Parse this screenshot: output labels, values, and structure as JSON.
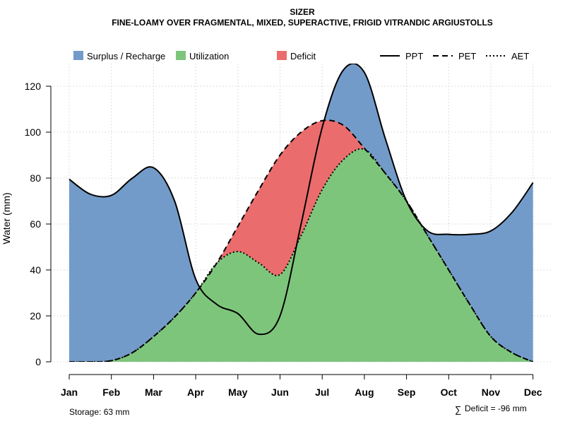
{
  "chart_data": {
    "type": "area",
    "title": "SIZER",
    "subtitle": "FINE-LOAMY OVER FRAGMENTAL, MIXED, SUPERACTIVE, FRIGID VITRANDIC ARGIUSTOLLS",
    "xlabel": "",
    "ylabel": "Water (mm)",
    "ylim": [
      0,
      130
    ],
    "yticks": [
      "0",
      "20",
      "40",
      "60",
      "80",
      "100",
      "120"
    ],
    "categories": [
      "Jan",
      "Feb",
      "Mar",
      "Apr",
      "May",
      "Jun",
      "Jul",
      "Aug",
      "Sep",
      "Oct",
      "Nov",
      "Dec"
    ],
    "grid": true,
    "legend_position": "top",
    "legend": {
      "fills": [
        {
          "label": "Surplus / Recharge",
          "color": "#739BC9"
        },
        {
          "label": "Utilization",
          "color": "#7EC57C"
        },
        {
          "label": "Deficit",
          "color": "#EB6C6C"
        }
      ],
      "lines": [
        {
          "label": "PPT",
          "style": "solid"
        },
        {
          "label": "PET",
          "style": "dashed"
        },
        {
          "label": "AET",
          "style": "dotted"
        }
      ]
    },
    "series": [
      {
        "name": "PPT",
        "x": [
          1,
          1.5,
          2,
          2.5,
          3,
          3.5,
          4,
          4.5,
          5,
          5.5,
          6,
          6.5,
          7,
          7.5,
          8,
          8.5,
          9,
          9.5,
          10,
          10.5,
          11,
          11.5,
          12
        ],
        "values": [
          79.5,
          73,
          72.5,
          80,
          84.5,
          70,
          36,
          25,
          21,
          12,
          20,
          60,
          102,
          127,
          126,
          97,
          70,
          57,
          55.5,
          55.5,
          57,
          65,
          78
        ]
      },
      {
        "name": "PET",
        "x": [
          1,
          1.5,
          2,
          2.5,
          3,
          3.5,
          4,
          4.5,
          5,
          5.5,
          6,
          6.5,
          7,
          7.5,
          8,
          8.5,
          9,
          9.5,
          10,
          10.5,
          11,
          11.5,
          12
        ],
        "values": [
          0,
          0,
          0.5,
          4,
          11,
          19.5,
          30,
          43,
          59,
          75,
          90,
          100,
          105,
          103,
          93,
          82,
          70,
          55,
          40,
          25,
          11,
          4,
          0
        ]
      },
      {
        "name": "AET",
        "x": [
          1,
          1.5,
          2,
          2.5,
          3,
          3.5,
          4,
          4.5,
          5,
          5.5,
          6,
          6.5,
          7,
          7.5,
          8,
          8.5,
          9,
          9.5,
          10,
          10.5,
          11,
          11.5,
          12
        ],
        "values": [
          0,
          0,
          0.5,
          4,
          11,
          19.5,
          30,
          43,
          48,
          43,
          38,
          55,
          75,
          88,
          92.5,
          82,
          70,
          55,
          40,
          25,
          11,
          4,
          0
        ]
      }
    ],
    "annotations": {
      "storage": "Storage: 63 mm",
      "deficit_symbol": "∑",
      "deficit": "Deficit = -96 mm"
    }
  }
}
